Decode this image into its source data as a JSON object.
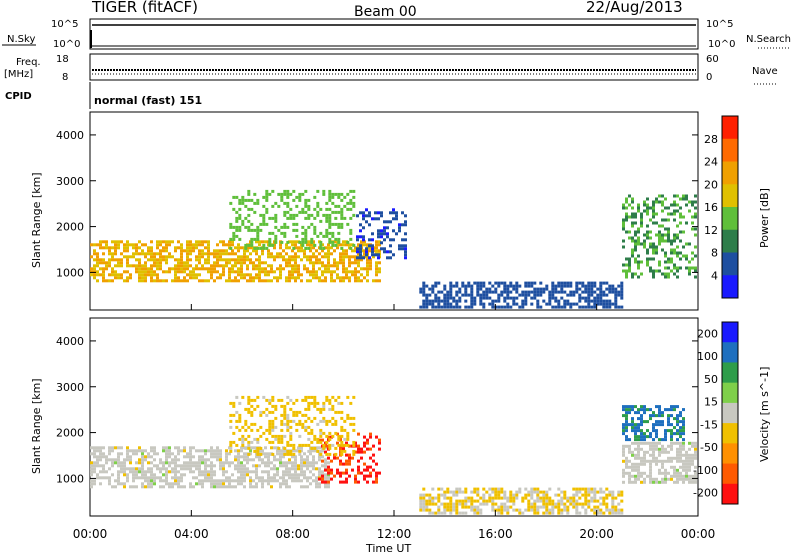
{
  "header": {
    "title": "TIGER (fitACF)",
    "beam": "Beam 00",
    "date": "22/Aug/2013"
  },
  "status_panels": {
    "nsky_label": "N.Sky",
    "nsearch_label": "N.Search",
    "nsky_ticks_left": [
      "10^5",
      "10^0"
    ],
    "nsky_ticks_right": [
      "10^5",
      "10^0"
    ],
    "freq_label": "Freq.",
    "freq_unit": "[MHz]",
    "freq_ticks": [
      "18",
      "8"
    ],
    "nave_label": "Nave",
    "nave_ticks": [
      "60",
      "0"
    ],
    "cpid_label": "CPID",
    "cpid_text": "normal (fast) 151"
  },
  "chart_data": [
    {
      "type": "heatmap",
      "name": "power",
      "ylabel": "Slant Range [km]",
      "yticks": [
        "4000",
        "3000",
        "2000",
        "1000"
      ],
      "ylim": [
        180,
        4500
      ],
      "xlim": [
        0,
        24
      ],
      "colorbar": {
        "label": "Power [dB]",
        "ticks": [
          "28",
          "24",
          "20",
          "16",
          "12",
          "8",
          "4"
        ],
        "colors": [
          "#1a1aff",
          "#1e4fa0",
          "#2e7d4a",
          "#5fbf3a",
          "#e0c000",
          "#f0a000",
          "#ff6a00",
          "#ff2000"
        ],
        "range": [
          0,
          32
        ]
      },
      "regions": [
        {
          "x": [
            0,
            11.5
          ],
          "y": [
            800,
            1700
          ],
          "value": 20,
          "note_color": "#ff6a00"
        },
        {
          "x": [
            5.5,
            10.5
          ],
          "y": [
            1500,
            2800
          ],
          "value": 14
        },
        {
          "x": [
            10.5,
            12.5
          ],
          "y": [
            1300,
            2400
          ],
          "value": 5
        },
        {
          "x": [
            21.0,
            24.0
          ],
          "y": [
            900,
            2700
          ],
          "value": 12
        },
        {
          "x": [
            13.0,
            21.0
          ],
          "y": [
            200,
            800
          ],
          "value": 6
        }
      ]
    },
    {
      "type": "heatmap",
      "name": "velocity",
      "ylabel": "Slant Range [km]",
      "yticks": [
        "4000",
        "3000",
        "2000",
        "1000"
      ],
      "ylim": [
        180,
        4500
      ],
      "xlim": [
        0,
        24
      ],
      "xticks": [
        "00:00",
        "04:00",
        "08:00",
        "12:00",
        "16:00",
        "20:00",
        "00:00"
      ],
      "xlabel": "Time UT",
      "colorbar": {
        "label": "Velocity [m s^-1]",
        "ticks": [
          "200",
          "100",
          "50",
          "15",
          "-15",
          "-50",
          "-100",
          "-200"
        ],
        "colors": [
          "#1a1aff",
          "#1e6fbf",
          "#2e9d4a",
          "#7fd04a",
          "#c8c8c0",
          "#f0c000",
          "#ff9000",
          "#ff5a00",
          "#ff1010"
        ],
        "range": [
          -250,
          250
        ]
      },
      "regions": [
        {
          "x": [
            0,
            9.5
          ],
          "y": [
            800,
            1700
          ],
          "value": 0
        },
        {
          "x": [
            9.0,
            11.5
          ],
          "y": [
            900,
            2000
          ],
          "value": -200
        },
        {
          "x": [
            5.5,
            10.5
          ],
          "y": [
            1500,
            2800
          ],
          "value": -50
        },
        {
          "x": [
            21.0,
            23.5
          ],
          "y": [
            1800,
            2600
          ],
          "value": 150
        },
        {
          "x": [
            21.0,
            24.0
          ],
          "y": [
            900,
            1800
          ],
          "value": 0
        },
        {
          "x": [
            13.0,
            21.0
          ],
          "y": [
            200,
            800
          ],
          "value": -30
        }
      ]
    }
  ]
}
